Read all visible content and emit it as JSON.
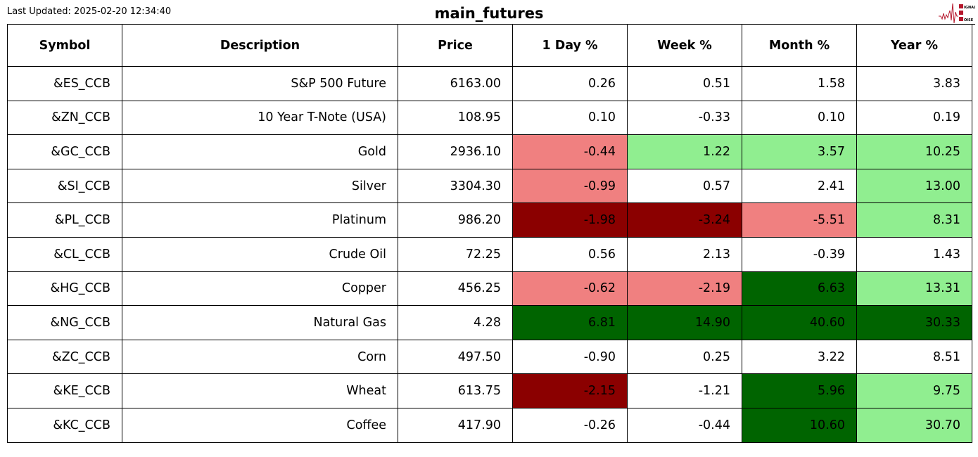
{
  "header": {
    "last_updated": "Last Updated: 2025-02-20 12:34:40",
    "title": "main_futures",
    "logo_text": "Signal 2 Noise"
  },
  "colors": {
    "light_negative": "#f08080",
    "strong_negative": "#8b0000",
    "light_positive": "#90ee90",
    "strong_positive": "#006400",
    "none": "#ffffff"
  },
  "chart_data": {
    "type": "table",
    "columns": [
      "Symbol",
      "Description",
      "Price",
      "1 Day %",
      "Week %",
      "Month %",
      "Year %"
    ],
    "rows": [
      [
        "&ES_CCB",
        "S&P 500 Future",
        "6163.00",
        "0.26",
        "0.51",
        "1.58",
        "3.83"
      ],
      [
        "&ZN_CCB",
        "10 Year T-Note (USA)",
        "108.95",
        "0.10",
        "-0.33",
        "0.10",
        "0.19"
      ],
      [
        "&GC_CCB",
        "Gold",
        "2936.10",
        "-0.44",
        "1.22",
        "3.57",
        "10.25"
      ],
      [
        "&SI_CCB",
        "Silver",
        "3304.30",
        "-0.99",
        "0.57",
        "2.41",
        "13.00"
      ],
      [
        "&PL_CCB",
        "Platinum",
        "986.20",
        "-1.98",
        "-3.24",
        "-5.51",
        "8.31"
      ],
      [
        "&CL_CCB",
        "Crude Oil",
        "72.25",
        "0.56",
        "2.13",
        "-0.39",
        "1.43"
      ],
      [
        "&HG_CCB",
        "Copper",
        "456.25",
        "-0.62",
        "-2.19",
        "6.63",
        "13.31"
      ],
      [
        "&NG_CCB",
        "Natural Gas",
        "4.28",
        "6.81",
        "14.90",
        "40.60",
        "30.33"
      ],
      [
        "&ZC_CCB",
        "Corn",
        "497.50",
        "-0.90",
        "0.25",
        "3.22",
        "8.51"
      ],
      [
        "&KE_CCB",
        "Wheat",
        "613.75",
        "-2.15",
        "-1.21",
        "5.96",
        "9.75"
      ],
      [
        "&KC_CCB",
        "Coffee",
        "417.90",
        "-0.26",
        "-0.44",
        "10.60",
        "30.70"
      ]
    ],
    "cell_colors": [
      [
        "none",
        "none",
        "none",
        "none"
      ],
      [
        "none",
        "none",
        "none",
        "none"
      ],
      [
        "light_negative",
        "light_positive",
        "light_positive",
        "light_positive"
      ],
      [
        "light_negative",
        "none",
        "none",
        "light_positive"
      ],
      [
        "strong_negative",
        "strong_negative",
        "light_negative",
        "light_positive"
      ],
      [
        "none",
        "none",
        "none",
        "none"
      ],
      [
        "light_negative",
        "light_negative",
        "strong_positive",
        "light_positive"
      ],
      [
        "strong_positive",
        "strong_positive",
        "strong_positive",
        "strong_positive"
      ],
      [
        "none",
        "none",
        "none",
        "none"
      ],
      [
        "strong_negative",
        "none",
        "strong_positive",
        "light_positive"
      ],
      [
        "none",
        "none",
        "strong_positive",
        "light_positive"
      ]
    ]
  }
}
